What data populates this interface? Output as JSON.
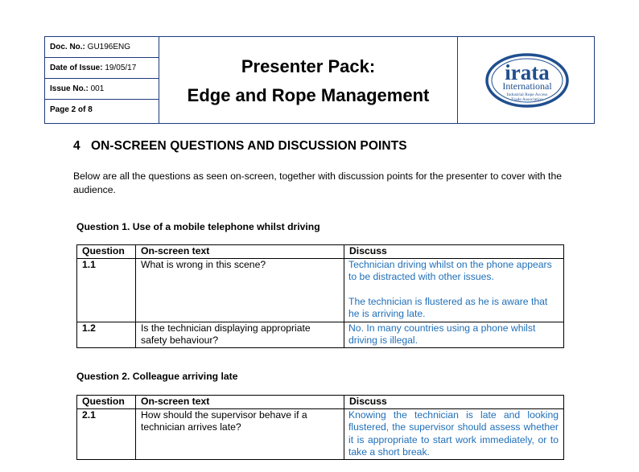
{
  "header": {
    "doc_no_label": "Doc. No.:",
    "doc_no_value": " GU196ENG",
    "date_label": "Date of Issue:",
    "date_value": " 19/05/17",
    "issue_label": "Issue No.:",
    "issue_value": " 001",
    "page": "Page 2 of 8",
    "title_line1": "Presenter Pack:",
    "title_line2": "Edge and Rope Management",
    "logo_main": "irata",
    "logo_sub": "International",
    "logo_small1": "Industrial Rope Access",
    "logo_small2": "Trade Association"
  },
  "section": {
    "heading": "4   ON-SCREEN QUESTIONS AND DISCUSSION POINTS",
    "intro": "Below are all the questions as seen on-screen, together with discussion points for the presenter to cover with the audience."
  },
  "questions": [
    {
      "heading": "Question 1. Use of a mobile telephone whilst driving",
      "columns": [
        "Question",
        "On-screen text",
        "Discuss"
      ],
      "rows": [
        {
          "num": "1.1",
          "text": "What is wrong in this scene?",
          "discuss1": "Technician driving whilst on the phone appears to be distracted with other issues.",
          "discuss2": "The technician is flustered as he is aware that he is arriving late."
        },
        {
          "num": "1.2",
          "text": "Is the technician displaying appropriate safety behaviour?",
          "discuss1": "No. In many countries using a phone whilst driving is illegal.",
          "discuss2": ""
        }
      ]
    },
    {
      "heading": "Question 2. Colleague arriving late",
      "columns": [
        "Question",
        "On-screen text",
        "Discuss"
      ],
      "rows": [
        {
          "num": "2.1",
          "text": "How should the supervisor behave if a technician arrives late?",
          "discuss1": "Knowing the technician is late and looking flustered, the supervisor should assess whether it is appropriate to start work immediately, or to take a short break.",
          "discuss2": ""
        }
      ]
    }
  ],
  "colors": {
    "border": "#1f3a7a",
    "discuss_text": "#1f6fb8",
    "logo_blue": "#1f4f8f"
  }
}
